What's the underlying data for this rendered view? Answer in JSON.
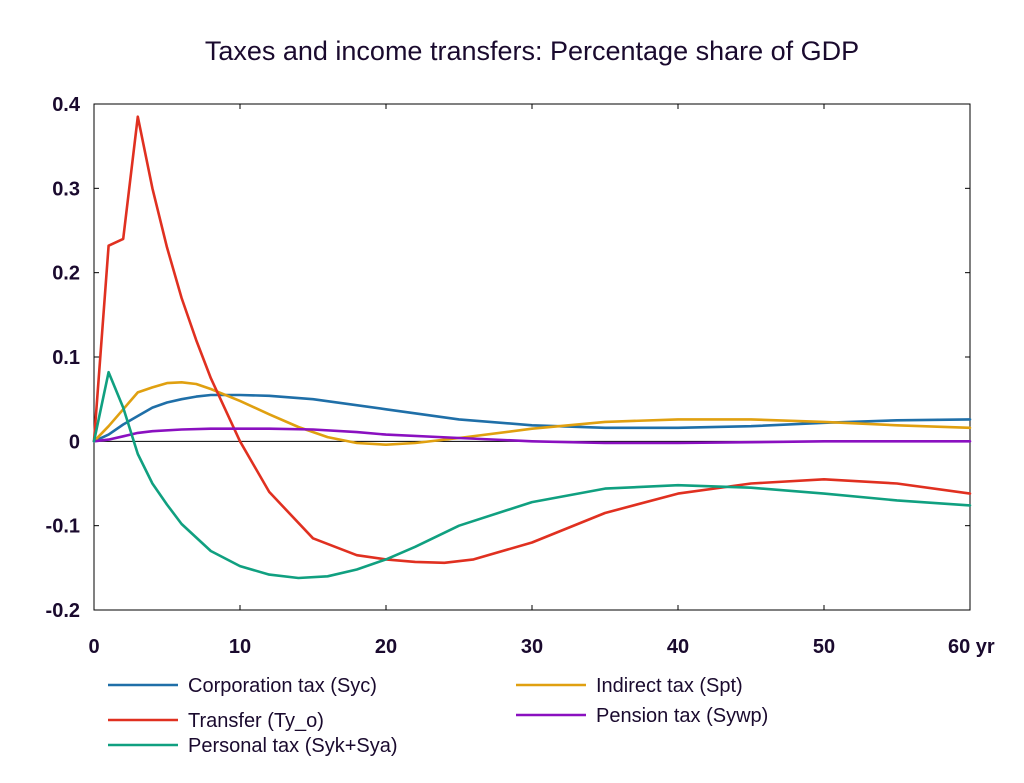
{
  "chart_data": {
    "type": "line",
    "title": "Taxes and income transfers: Percentage share of GDP",
    "xlabel": "",
    "ylabel": "",
    "x_unit_label": "yr",
    "xlim": [
      0,
      60
    ],
    "ylim": [
      -0.2,
      0.4
    ],
    "x_ticks": [
      0,
      10,
      20,
      30,
      40,
      50,
      60
    ],
    "y_ticks": [
      -0.2,
      -0.1,
      0,
      0.1,
      0.2,
      0.3,
      0.4
    ],
    "x_tick_labels": [
      "0",
      "10",
      "20",
      "30",
      "40",
      "50",
      "60 yr"
    ],
    "y_tick_labels": [
      "-0.2",
      "-0.1",
      "0",
      "0.1",
      "0.2",
      "0.3",
      "0.4"
    ],
    "grid": false,
    "zero_line": true,
    "legend_position": "bottom",
    "series": [
      {
        "name": "Corporation tax (Syc)",
        "color": "#1f6fa8",
        "x": [
          0,
          1,
          2,
          3,
          4,
          5,
          6,
          7,
          8,
          10,
          12,
          15,
          20,
          25,
          30,
          35,
          40,
          45,
          50,
          55,
          60
        ],
        "y": [
          0,
          0.008,
          0.02,
          0.03,
          0.04,
          0.046,
          0.05,
          0.053,
          0.055,
          0.055,
          0.054,
          0.05,
          0.038,
          0.026,
          0.019,
          0.016,
          0.016,
          0.018,
          0.022,
          0.025,
          0.026
        ]
      },
      {
        "name": "Indirect tax (Spt)",
        "color": "#e0a010",
        "x": [
          0,
          1,
          2,
          3,
          4,
          5,
          6,
          7,
          8,
          10,
          12,
          14,
          16,
          18,
          20,
          22,
          25,
          30,
          35,
          40,
          45,
          50,
          55,
          60
        ],
        "y": [
          0,
          0.018,
          0.038,
          0.058,
          0.064,
          0.069,
          0.07,
          0.068,
          0.062,
          0.048,
          0.032,
          0.017,
          0.005,
          -0.002,
          -0.004,
          -0.002,
          0.004,
          0.015,
          0.023,
          0.026,
          0.026,
          0.023,
          0.019,
          0.016
        ]
      },
      {
        "name": "Transfer (Ty_o)",
        "color": "#e03020",
        "x": [
          0,
          1,
          2,
          3,
          4,
          5,
          6,
          7,
          8,
          10,
          12,
          15,
          18,
          20,
          22,
          24,
          26,
          30,
          35,
          40,
          45,
          50,
          55,
          60
        ],
        "y": [
          0,
          0.232,
          0.24,
          0.385,
          0.3,
          0.23,
          0.17,
          0.12,
          0.075,
          0.0,
          -0.06,
          -0.115,
          -0.135,
          -0.14,
          -0.143,
          -0.144,
          -0.14,
          -0.12,
          -0.085,
          -0.062,
          -0.05,
          -0.045,
          -0.05,
          -0.062
        ]
      },
      {
        "name": "Pension tax (Sywp)",
        "color": "#8a10c0",
        "x": [
          0,
          1,
          2,
          3,
          4,
          6,
          8,
          10,
          12,
          15,
          18,
          20,
          25,
          30,
          35,
          40,
          45,
          50,
          55,
          60
        ],
        "y": [
          0,
          0.002,
          0.006,
          0.01,
          0.012,
          0.014,
          0.015,
          0.015,
          0.015,
          0.014,
          0.011,
          0.008,
          0.004,
          0.0,
          -0.002,
          -0.002,
          -0.001,
          0.0,
          0.0,
          0.0
        ]
      },
      {
        "name": "Personal tax (Syk+Sya)",
        "color": "#10a080",
        "x": [
          0,
          1,
          2,
          3,
          4,
          5,
          6,
          8,
          10,
          12,
          14,
          16,
          18,
          20,
          22,
          25,
          30,
          35,
          40,
          45,
          50,
          55,
          60
        ],
        "y": [
          0,
          0.082,
          0.04,
          -0.015,
          -0.05,
          -0.075,
          -0.098,
          -0.13,
          -0.148,
          -0.158,
          -0.162,
          -0.16,
          -0.152,
          -0.14,
          -0.125,
          -0.1,
          -0.072,
          -0.056,
          -0.052,
          -0.055,
          -0.062,
          -0.07,
          -0.076
        ]
      }
    ]
  }
}
